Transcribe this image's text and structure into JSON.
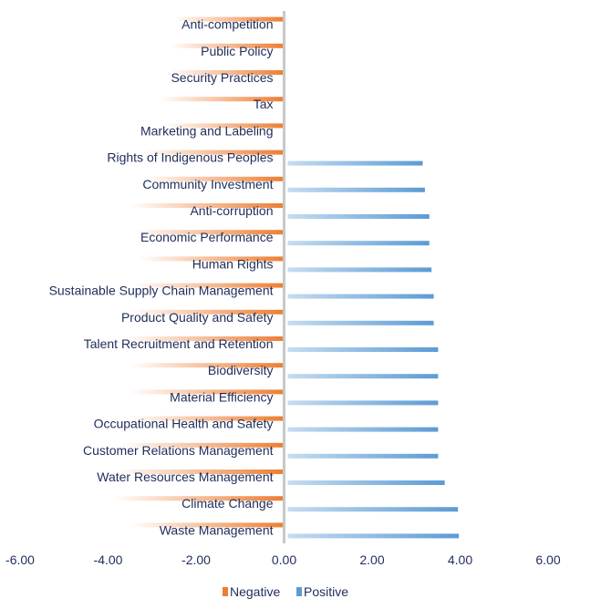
{
  "chart_data": {
    "type": "bar",
    "orientation": "horizontal",
    "categories": [
      "Anti-competition",
      "Public Policy",
      "Security Practices",
      "Tax",
      "Marketing and Labeling",
      "Rights of Indigenous Peoples",
      "Community Investment",
      "Anti-corruption",
      "Economic Performance",
      "Human Rights",
      "Sustainable Supply Chain Management",
      "Product Quality and Safety",
      "Talent Recruitment and Retention",
      "Biodiversity",
      "Material Efficiency",
      "Occupational Health and Safety",
      "Customer Relations Management",
      "Water Resources Management",
      "Climate Change",
      "Waste Management"
    ],
    "series": [
      {
        "name": "Negative",
        "color": "#ed7d31",
        "values": [
          -2.5,
          -2.6,
          -2.6,
          -2.8,
          -2.7,
          -3.2,
          -3.2,
          -3.5,
          -3.4,
          -3.3,
          -3.4,
          -3.5,
          -3.6,
          -3.5,
          -3.5,
          -3.5,
          -3.7,
          -3.8,
          -3.9,
          -3.5
        ]
      },
      {
        "name": "Positive",
        "color": "#5b9bd5",
        "values": [
          0,
          0,
          0,
          0,
          0,
          3.15,
          3.2,
          3.3,
          3.3,
          3.35,
          3.4,
          3.4,
          3.5,
          3.5,
          3.5,
          3.5,
          3.5,
          3.65,
          3.95,
          3.97
        ]
      }
    ],
    "x_ticks": [
      "-6.00",
      "-4.00",
      "-2.00",
      "0.00",
      "2.00",
      "4.00",
      "6.00"
    ],
    "xlim": [
      -6,
      6
    ],
    "grid": false,
    "legend_position": "bottom"
  }
}
